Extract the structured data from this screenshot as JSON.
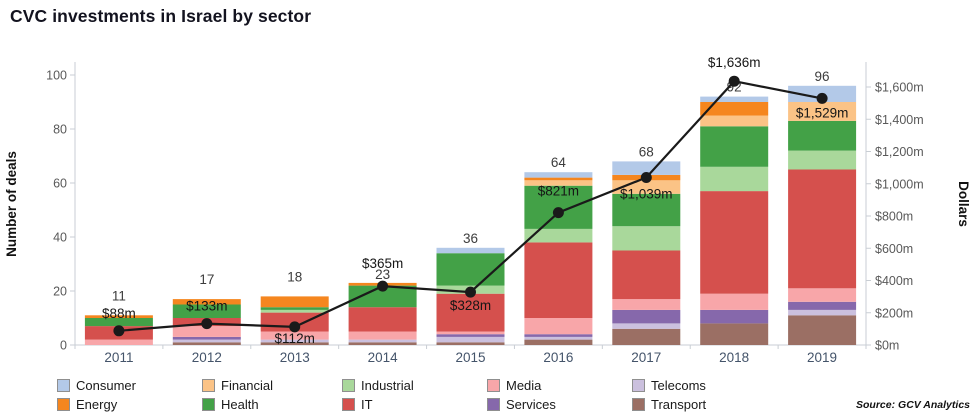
{
  "title": "CVC investments in Israel by sector",
  "source_note": "Source: GCV Analytics",
  "chart_data": {
    "type": "bar",
    "title": "CVC investments in Israel by sector",
    "categories": [
      "2011",
      "2012",
      "2013",
      "2014",
      "2015",
      "2016",
      "2017",
      "2018",
      "2019"
    ],
    "left_axis": {
      "label": "Number of deals",
      "ticks": [
        0,
        20,
        40,
        60,
        80,
        100
      ],
      "max": 100
    },
    "right_axis": {
      "label": "Dollars",
      "tick_values": [
        0,
        200,
        400,
        600,
        800,
        1000,
        1200,
        1400,
        1600
      ],
      "tick_labels": [
        "$0m",
        "$200m",
        "$400m",
        "$600m",
        "$800m",
        "$1,000m",
        "$1,200m",
        "$1,400m",
        "$1,600m"
      ],
      "max": 1600
    },
    "grid": false,
    "legend_position": "bottom",
    "series": [
      {
        "name": "Transport",
        "color": "#9b6f64",
        "values": [
          0,
          1,
          1,
          1,
          1,
          2,
          6,
          8,
          11
        ]
      },
      {
        "name": "Telecoms",
        "color": "#cbc0de",
        "values": [
          0,
          1,
          1,
          1,
          2,
          1,
          2,
          0,
          2
        ]
      },
      {
        "name": "Services",
        "color": "#8668ab",
        "values": [
          0,
          1,
          0,
          0,
          1,
          1,
          5,
          5,
          3
        ]
      },
      {
        "name": "Media",
        "color": "#f8a6a9",
        "values": [
          2,
          4,
          3,
          3,
          1,
          6,
          4,
          6,
          5
        ]
      },
      {
        "name": "IT",
        "color": "#d5504d",
        "values": [
          5,
          3,
          7,
          9,
          14,
          28,
          18,
          38,
          44
        ]
      },
      {
        "name": "Industrial",
        "color": "#a9d89b",
        "values": [
          0,
          0,
          1,
          0,
          3,
          5,
          9,
          9,
          7
        ]
      },
      {
        "name": "Health",
        "color": "#43a147",
        "values": [
          3,
          5,
          1,
          8,
          12,
          16,
          12,
          15,
          11
        ]
      },
      {
        "name": "Financial",
        "color": "#fbc386",
        "values": [
          0,
          0,
          0,
          0,
          0,
          2,
          5,
          4,
          7
        ]
      },
      {
        "name": "Energy",
        "color": "#f5861f",
        "values": [
          1,
          2,
          4,
          1,
          0,
          1,
          2,
          5,
          0
        ]
      },
      {
        "name": "Consumer",
        "color": "#b3c9e8",
        "values": [
          0,
          0,
          0,
          0,
          2,
          2,
          5,
          2,
          6
        ]
      }
    ],
    "bar_totals": [
      11,
      17,
      18,
      23,
      36,
      64,
      68,
      92,
      96
    ],
    "line_series": {
      "name": "Investment value",
      "color": "#1a1a1a",
      "values": [
        88,
        133,
        112,
        365,
        328,
        821,
        1039,
        1636,
        1529
      ],
      "labels": [
        "$88m",
        "$133m",
        "$112m",
        "$365m",
        "$328m",
        "$821m",
        "$1,039m",
        "$1,636m",
        "$1,529m"
      ],
      "label_dy": [
        -13,
        -13,
        16,
        -18,
        18,
        -17,
        21,
        -14,
        19
      ]
    },
    "total_label_dy": [
      -15,
      -15,
      -15,
      -4,
      -5,
      -5,
      -5,
      -5,
      -5
    ],
    "legend": {
      "order": [
        "Consumer",
        "Energy",
        "Financial",
        "Health",
        "Industrial",
        "IT",
        "Media",
        "Services",
        "Telecoms",
        "Transport"
      ]
    }
  }
}
